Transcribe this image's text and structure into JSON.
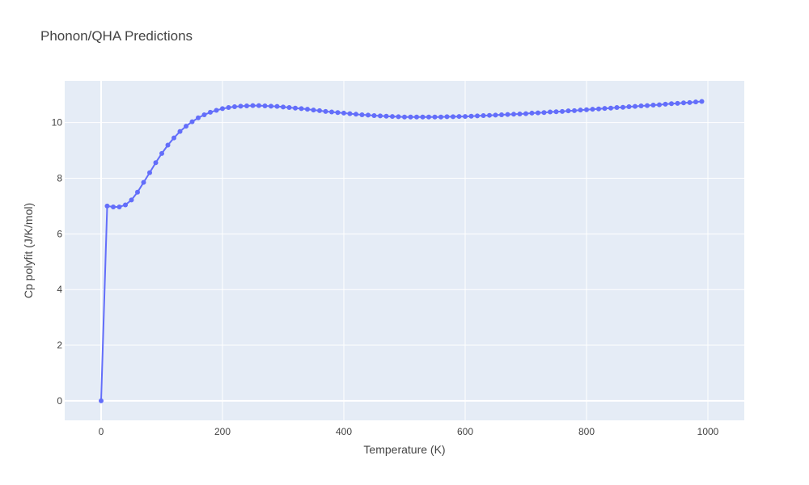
{
  "chart_data": {
    "type": "line",
    "title": "Phonon/QHA Predictions",
    "xlabel": "Temperature (K)",
    "ylabel": "Cp polyfit (J/K/mol)",
    "xlim": [
      -60,
      1060
    ],
    "ylim": [
      -0.7,
      11.5
    ],
    "x_ticks": [
      0,
      200,
      400,
      600,
      800,
      1000
    ],
    "y_ticks": [
      0,
      2,
      4,
      6,
      8,
      10
    ],
    "grid": true,
    "legend": "none",
    "colors": {
      "series": "#636efa",
      "plot_bg": "#e5ecf6",
      "grid": "#ffffff"
    },
    "series": [
      {
        "x": [
          0,
          10,
          20,
          30,
          40,
          50,
          60,
          70,
          80,
          90,
          100,
          110,
          120,
          130,
          140,
          150,
          160,
          170,
          180,
          190,
          200,
          210,
          220,
          230,
          240,
          250,
          260,
          270,
          280,
          290,
          300,
          310,
          320,
          330,
          340,
          350,
          360,
          370,
          380,
          390,
          400,
          410,
          420,
          430,
          440,
          450,
          460,
          470,
          480,
          490,
          500,
          510,
          520,
          530,
          540,
          550,
          560,
          570,
          580,
          590,
          600,
          610,
          620,
          630,
          640,
          650,
          660,
          670,
          680,
          690,
          700,
          710,
          720,
          730,
          740,
          750,
          760,
          770,
          780,
          790,
          800,
          810,
          820,
          830,
          840,
          850,
          860,
          870,
          880,
          890,
          900,
          910,
          920,
          930,
          940,
          950,
          960,
          970,
          980,
          990
        ],
        "y": [
          0.0,
          7.0,
          6.97,
          6.97,
          7.04,
          7.22,
          7.5,
          7.85,
          8.2,
          8.56,
          8.89,
          9.19,
          9.45,
          9.68,
          9.87,
          10.03,
          10.17,
          10.28,
          10.37,
          10.44,
          10.5,
          10.54,
          10.57,
          10.59,
          10.6,
          10.61,
          10.61,
          10.6,
          10.59,
          10.58,
          10.56,
          10.54,
          10.52,
          10.5,
          10.48,
          10.45,
          10.43,
          10.4,
          10.38,
          10.36,
          10.34,
          10.32,
          10.3,
          10.28,
          10.27,
          10.25,
          10.24,
          10.23,
          10.22,
          10.21,
          10.2,
          10.2,
          10.2,
          10.2,
          10.2,
          10.2,
          10.2,
          10.21,
          10.21,
          10.22,
          10.22,
          10.23,
          10.24,
          10.25,
          10.26,
          10.27,
          10.28,
          10.29,
          10.3,
          10.31,
          10.32,
          10.34,
          10.35,
          10.36,
          10.38,
          10.39,
          10.4,
          10.42,
          10.43,
          10.45,
          10.46,
          10.48,
          10.49,
          10.51,
          10.52,
          10.54,
          10.55,
          10.57,
          10.58,
          10.6,
          10.61,
          10.63,
          10.64,
          10.66,
          10.68,
          10.69,
          10.71,
          10.72,
          10.74,
          10.76
        ]
      }
    ]
  }
}
